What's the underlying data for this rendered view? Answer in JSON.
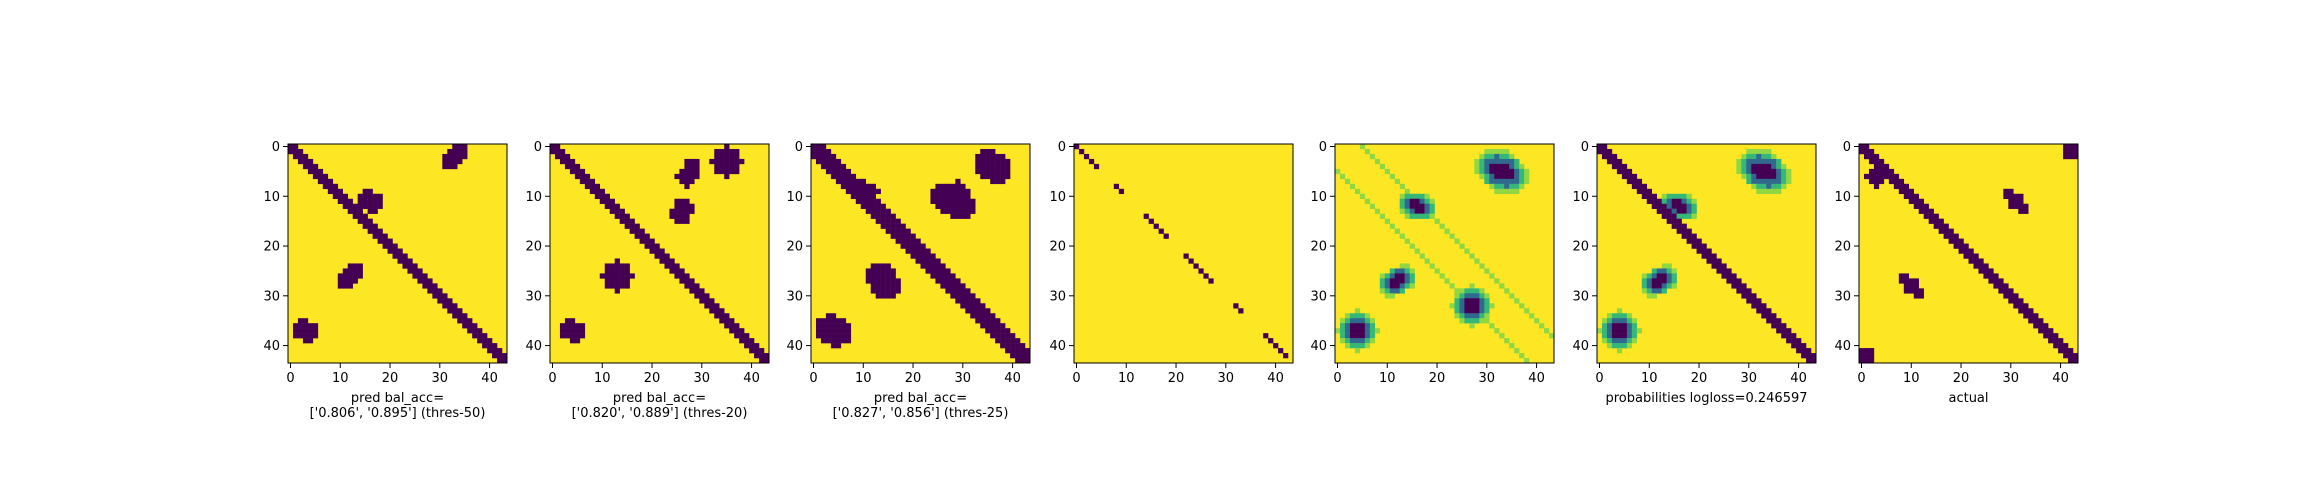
{
  "figure": {
    "colormap": {
      "low": "#440154",
      "mid": [
        "#31688e",
        "#35b779",
        "#90d743"
      ],
      "high": "#fde725"
    },
    "matrix_size": 44
  },
  "chart_data": [
    {
      "type": "heatmap",
      "matrix": "binary prediction (thres-50)",
      "xlabel": "pred bal_acc=\n['0.806', '0.895'] (thres-50)",
      "x_ticks": [
        0,
        10,
        20,
        30,
        40
      ],
      "y_ticks": [
        0,
        10,
        20,
        30,
        40
      ],
      "xlim": [
        0,
        43
      ],
      "ylim": [
        0,
        43
      ],
      "diag_width": 2,
      "blobs": [
        [
          33,
          2,
          2,
          3,
          0.5
        ],
        [
          16,
          11,
          3,
          2,
          0.3
        ],
        [
          12,
          26,
          3,
          2,
          -0.5
        ],
        [
          3,
          37,
          3,
          2,
          0.4
        ]
      ]
    },
    {
      "type": "heatmap",
      "matrix": "binary prediction (thres-20)",
      "xlabel": "pred bal_acc=\n['0.820', '0.889'] (thres-20)",
      "x_ticks": [
        0,
        10,
        20,
        30,
        40
      ],
      "y_ticks": [
        0,
        10,
        20,
        30,
        40
      ],
      "xlim": [
        0,
        43
      ],
      "ylim": [
        0,
        43
      ],
      "diag_width": 2,
      "blobs": [
        [
          35,
          3,
          3,
          3,
          0.5
        ],
        [
          27,
          6,
          2,
          2,
          0
        ],
        [
          26,
          13,
          2,
          3,
          0.3
        ],
        [
          13,
          26,
          3,
          3,
          -0.5
        ],
        [
          4,
          37,
          3,
          2,
          0.4
        ],
        [
          28,
          4,
          1.5,
          1.5,
          0
        ]
      ]
    },
    {
      "type": "heatmap",
      "matrix": "binary prediction (thres-25)",
      "xlabel": "pred bal_acc=\n['0.827', '0.856'] (thres-25)",
      "x_ticks": [
        0,
        10,
        20,
        30,
        40
      ],
      "y_ticks": [
        0,
        10,
        20,
        30,
        40
      ],
      "xlim": [
        0,
        43
      ],
      "ylim": [
        0,
        43
      ],
      "diag_width": 3,
      "blobs": [
        [
          36,
          4,
          4,
          3,
          0.5
        ],
        [
          10,
          9,
          3,
          2,
          0
        ],
        [
          28,
          11,
          5,
          3,
          0.3
        ],
        [
          14,
          27,
          3,
          4,
          -0.5
        ],
        [
          4,
          37,
          4,
          3,
          0.4
        ],
        [
          29,
          9,
          2,
          2,
          0
        ]
      ]
    },
    {
      "type": "heatmap",
      "matrix": "ground-truth diagonal samples",
      "xlabel": "",
      "x_ticks": [
        0,
        10,
        20,
        30,
        40
      ],
      "y_ticks": [
        0,
        10,
        20,
        30,
        40
      ],
      "xlim": [
        0,
        43
      ],
      "ylim": [
        0,
        43
      ],
      "diagonal_points": [
        0,
        1,
        2,
        3,
        4,
        8,
        9,
        14,
        15,
        16,
        17,
        18,
        22,
        23,
        24,
        25,
        26,
        27,
        32,
        33,
        38,
        39,
        40,
        41,
        42
      ]
    },
    {
      "type": "heatmap",
      "matrix": "probability map (raw)",
      "xlabel": "",
      "x_ticks": [
        0,
        10,
        20,
        30,
        40
      ],
      "y_ticks": [
        0,
        10,
        20,
        30,
        40
      ],
      "xlim": [
        0,
        43
      ],
      "ylim": [
        0,
        43
      ],
      "blobs": [
        [
          33,
          5,
          4,
          3,
          0.5
        ],
        [
          16,
          12,
          3,
          2,
          0.3
        ],
        [
          12,
          27,
          3,
          2,
          -0.5
        ],
        [
          4,
          37,
          3,
          3,
          0.4
        ],
        [
          27,
          32,
          3,
          3,
          0.5
        ]
      ]
    },
    {
      "type": "heatmap",
      "matrix": "probabilities with diagonal",
      "xlabel": "probabilities logloss=0.246597",
      "x_ticks": [
        0,
        10,
        20,
        30,
        40
      ],
      "y_ticks": [
        0,
        10,
        20,
        30,
        40
      ],
      "xlim": [
        0,
        43
      ],
      "ylim": [
        0,
        43
      ],
      "diag_width": 2,
      "blobs": [
        [
          33,
          5,
          4,
          3,
          0.5
        ],
        [
          16,
          12,
          3,
          2,
          0.3
        ],
        [
          12,
          27,
          3,
          2,
          -0.5
        ],
        [
          4,
          37,
          3,
          3,
          0.4
        ]
      ]
    },
    {
      "type": "heatmap",
      "matrix": "actual contact map",
      "xlabel": "actual",
      "x_ticks": [
        0,
        10,
        20,
        30,
        40
      ],
      "y_ticks": [
        0,
        10,
        20,
        30,
        40
      ],
      "xlim": [
        0,
        43
      ],
      "ylim": [
        0,
        43
      ],
      "diag_width": 2,
      "blobs": [
        [
          31,
          11,
          3,
          1.5,
          0.8
        ],
        [
          10,
          28,
          3,
          1.5,
          0.8
        ],
        [
          42,
          1,
          1.5,
          1.5,
          0
        ],
        [
          1,
          42,
          1.5,
          1.5,
          0
        ],
        [
          3,
          6,
          2,
          2,
          0.5
        ]
      ]
    }
  ]
}
